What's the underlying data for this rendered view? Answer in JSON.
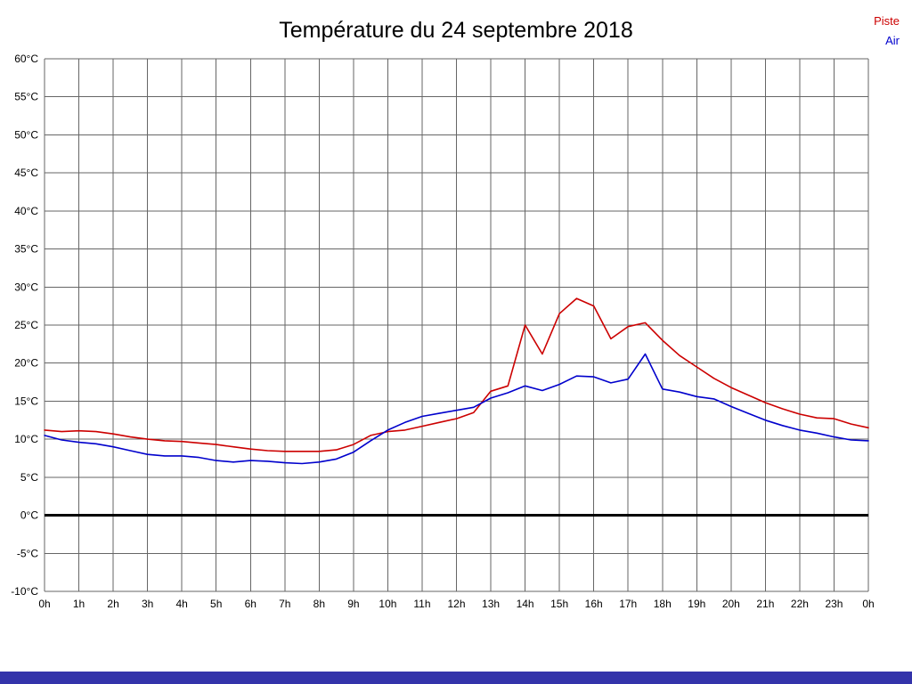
{
  "page": {
    "background": "#ffffff",
    "footer_color": "#3333aa"
  },
  "legend": {
    "position": "top-right"
  },
  "chart_data": {
    "type": "line",
    "title": "Température du 24 septembre 2018",
    "xlabel": "",
    "ylabel": "",
    "x_range": [
      0,
      24
    ],
    "y_range": [
      -10,
      60
    ],
    "x_start": 0,
    "x_step": 0.5,
    "grid": true,
    "grid_color": "#666666",
    "zero_line": {
      "value": 0,
      "color": "#000000",
      "width": 3
    },
    "legend_position": "top-right",
    "x_tick_values": [
      0,
      1,
      2,
      3,
      4,
      5,
      6,
      7,
      8,
      9,
      10,
      11,
      12,
      13,
      14,
      15,
      16,
      17,
      18,
      19,
      20,
      21,
      22,
      23,
      24
    ],
    "x_tick_labels": [
      "0h",
      "1h",
      "2h",
      "3h",
      "4h",
      "5h",
      "6h",
      "7h",
      "8h",
      "9h",
      "10h",
      "11h",
      "12h",
      "13h",
      "14h",
      "15h",
      "16h",
      "17h",
      "18h",
      "19h",
      "20h",
      "21h",
      "22h",
      "23h",
      "0h"
    ],
    "y_tick_values": [
      60,
      55,
      50,
      45,
      40,
      35,
      30,
      25,
      20,
      15,
      10,
      5,
      0,
      -5,
      -10
    ],
    "y_tick_labels": [
      "60°C",
      "55°C",
      "50°C",
      "45°C",
      "40°C",
      "35°C",
      "30°C",
      "25°C",
      "20°C",
      "15°C",
      "10°C",
      "5°C",
      "0°C",
      "-5°C",
      "-10°C"
    ],
    "series": [
      {
        "name": "Piste",
        "color": "#cc0000",
        "values": [
          11.2,
          11.0,
          11.1,
          11.0,
          10.7,
          10.3,
          10.0,
          9.8,
          9.7,
          9.5,
          9.3,
          9.0,
          8.7,
          8.5,
          8.4,
          8.4,
          8.4,
          8.6,
          9.3,
          10.5,
          11.0,
          11.2,
          11.7,
          12.2,
          12.7,
          13.5,
          16.3,
          17.0,
          25.0,
          21.2,
          26.5,
          28.5,
          27.5,
          23.2,
          24.8,
          25.3,
          23.0,
          21.0,
          19.5,
          18.0,
          16.8,
          15.8,
          14.8,
          14.0,
          13.3,
          12.8,
          12.7,
          12.0,
          11.5
        ]
      },
      {
        "name": "Air",
        "color": "#0000cc",
        "values": [
          10.5,
          9.9,
          9.6,
          9.4,
          9.0,
          8.5,
          8.0,
          7.8,
          7.8,
          7.6,
          7.2,
          7.0,
          7.2,
          7.1,
          6.9,
          6.8,
          7.0,
          7.4,
          8.3,
          9.8,
          11.2,
          12.2,
          13.0,
          13.4,
          13.8,
          14.2,
          15.4,
          16.1,
          17.0,
          16.4,
          17.2,
          18.3,
          18.2,
          17.4,
          17.9,
          21.2,
          16.6,
          16.2,
          15.6,
          15.3,
          14.3,
          13.4,
          12.5,
          11.8,
          11.2,
          10.8,
          10.3,
          9.9,
          9.8
        ]
      }
    ]
  }
}
